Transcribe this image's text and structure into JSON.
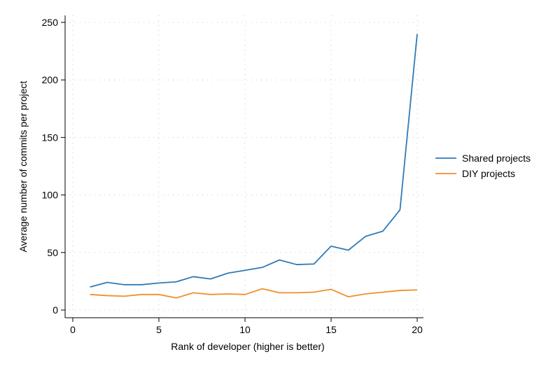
{
  "chart_data": {
    "type": "line",
    "xlabel": "Rank of developer (higher is better)",
    "ylabel": "Average number of commits per project",
    "xlim": [
      0,
      20
    ],
    "ylim": [
      0,
      250
    ],
    "xticks": [
      "0",
      "5",
      "10",
      "15",
      "20"
    ],
    "yticks": [
      "0",
      "50",
      "100",
      "150",
      "200",
      "250"
    ],
    "grid": true,
    "legend_position": "right",
    "x": [
      1,
      2,
      3,
      4,
      5,
      6,
      7,
      8,
      9,
      10,
      11,
      12,
      13,
      14,
      15,
      16,
      17,
      18,
      19,
      20
    ],
    "series": [
      {
        "name": "Shared projects",
        "color": "#2f7ab8",
        "values": [
          20,
          24,
          22,
          22,
          23.5,
          24.5,
          29,
          27,
          32,
          34.5,
          37,
          43.5,
          39.5,
          40,
          55.5,
          52,
          64,
          68.5,
          87,
          240
        ]
      },
      {
        "name": "DIY projects",
        "color": "#f28e2b",
        "values": [
          13.5,
          12.5,
          12,
          13.5,
          13.5,
          10.5,
          15,
          13.5,
          14,
          13.5,
          18.5,
          15,
          15,
          15.5,
          18,
          11.5,
          14,
          15.5,
          17,
          17.5
        ]
      }
    ]
  }
}
